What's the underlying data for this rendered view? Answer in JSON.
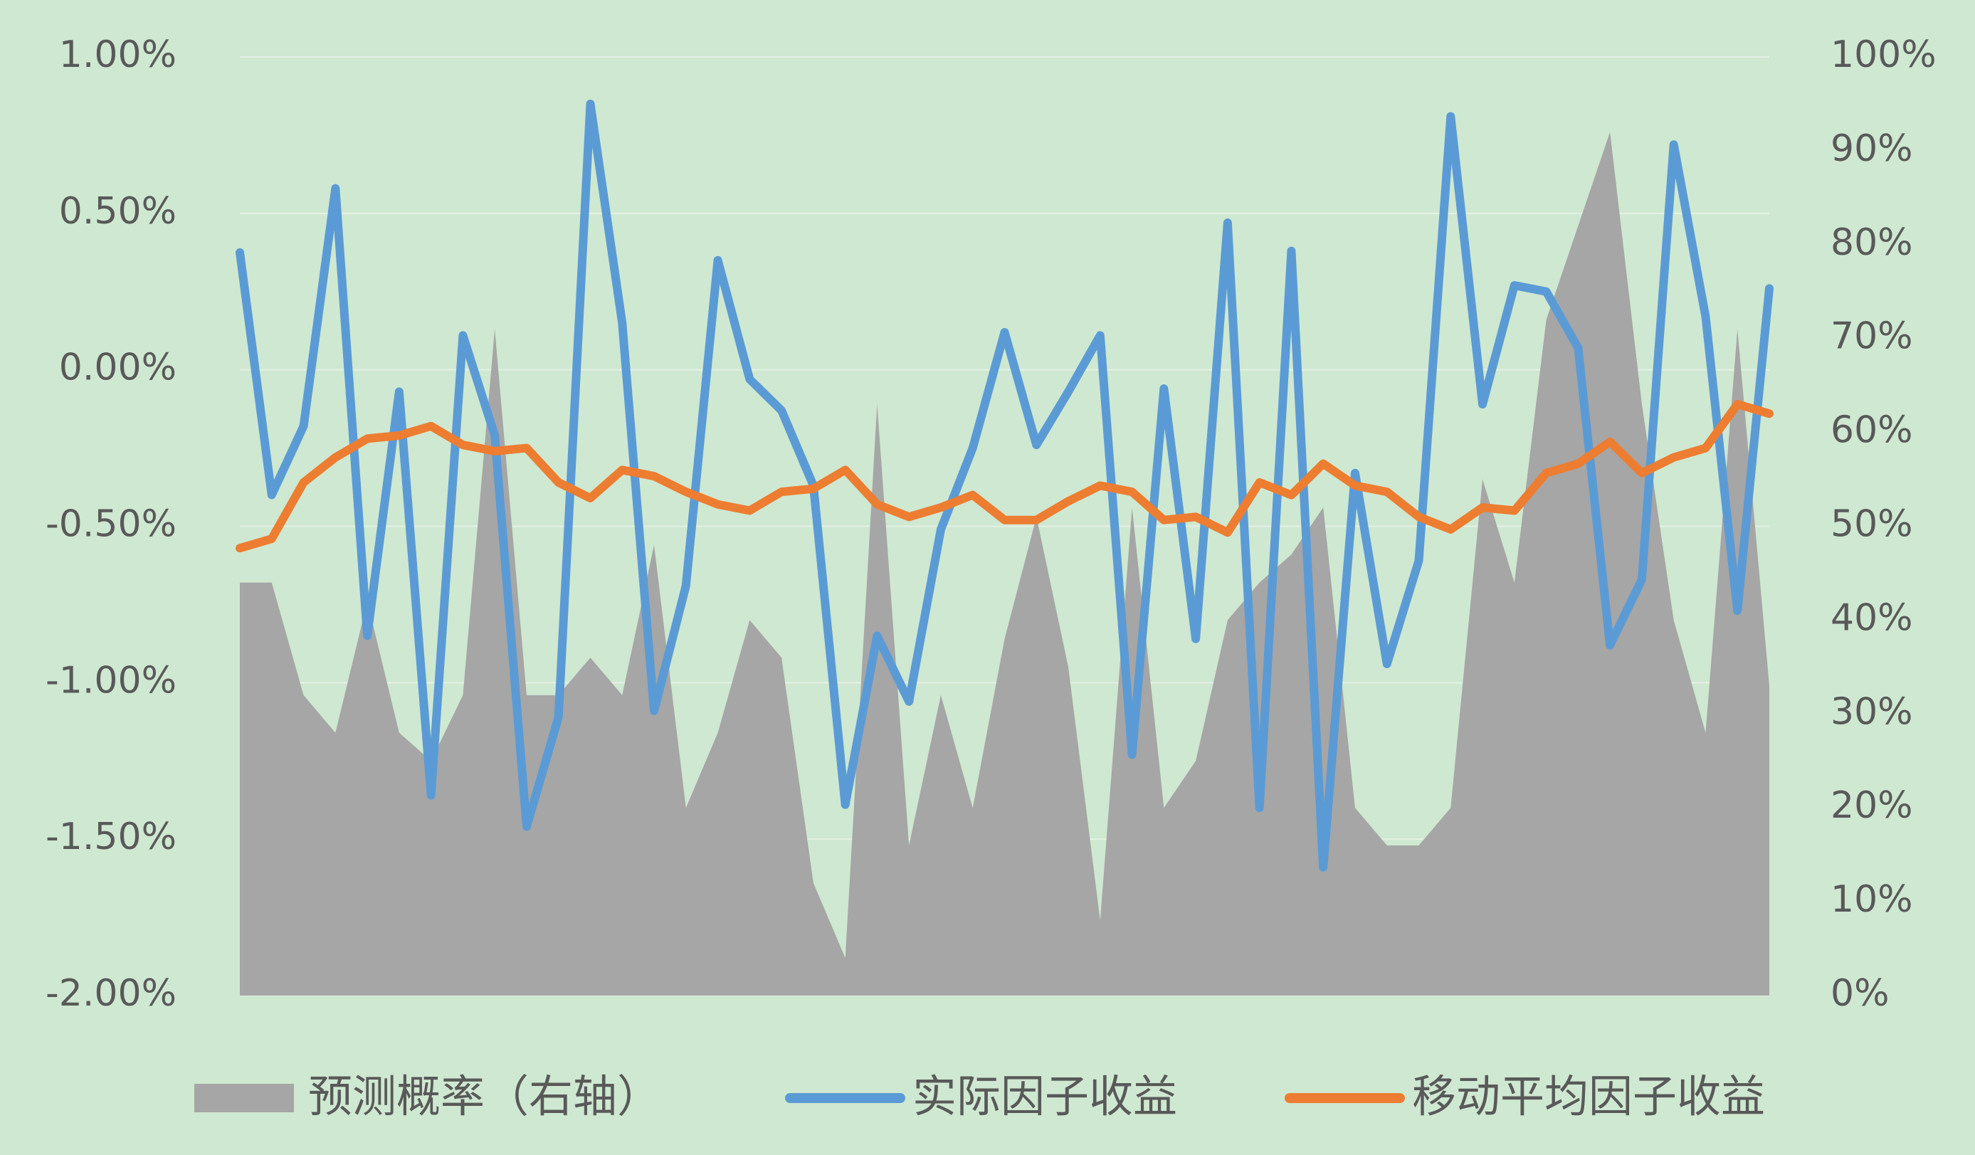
{
  "chart_data": {
    "type": "combo",
    "categories": [
      null,
      null,
      null,
      null,
      null,
      null,
      null,
      null,
      null,
      null,
      null,
      null,
      null,
      null,
      null,
      null,
      null,
      null,
      null,
      null,
      null,
      null,
      null,
      null,
      null,
      null,
      null,
      null,
      null,
      null,
      null,
      null,
      null,
      null,
      null,
      null,
      null,
      null,
      null,
      null,
      null,
      null,
      null,
      null,
      null,
      null,
      null,
      null,
      null
    ],
    "series": [
      {
        "name": "预测概率（右轴）",
        "type": "area",
        "axis": "y2",
        "color": "#a6a6a6",
        "values": [
          44,
          44,
          32,
          28,
          42,
          28,
          25,
          32,
          71,
          32,
          32,
          36,
          32,
          48,
          20,
          28,
          40,
          36,
          12,
          4,
          63,
          16,
          32,
          20,
          38,
          51,
          35,
          8,
          52,
          20,
          25,
          40,
          44,
          47,
          52,
          20,
          16,
          16,
          20,
          55,
          44,
          72,
          82,
          92,
          63,
          40,
          28,
          71,
          33
        ]
      },
      {
        "name": "实际因子收益",
        "type": "line",
        "color": "#5b9bd5",
        "values": [
          0.375,
          -0.4,
          -0.18,
          0.58,
          -0.85,
          -0.07,
          -1.36,
          0.11,
          -0.21,
          -1.46,
          -1.11,
          0.85,
          0.15,
          -1.09,
          -0.69,
          0.35,
          -0.03,
          -0.13,
          -0.37,
          -1.39,
          -0.85,
          -1.06,
          -0.51,
          -0.25,
          0.12,
          -0.24,
          -0.07,
          0.11,
          -1.23,
          -0.06,
          -0.86,
          0.47,
          -1.4,
          0.38,
          -1.59,
          -0.33,
          -0.94,
          -0.61,
          0.81,
          -0.11,
          0.27,
          0.25,
          0.07,
          -0.88,
          -0.67,
          0.72,
          0.17,
          -0.77,
          0.26
        ]
      },
      {
        "name": "移动平均因子收益",
        "type": "line",
        "color": "#ed7d31",
        "values": [
          -0.57,
          -0.54,
          -0.36,
          -0.28,
          -0.22,
          -0.21,
          -0.18,
          -0.24,
          -0.26,
          -0.25,
          -0.36,
          -0.41,
          -0.32,
          -0.34,
          -0.39,
          -0.43,
          -0.45,
          -0.39,
          -0.38,
          -0.32,
          -0.43,
          -0.47,
          -0.44,
          -0.4,
          -0.48,
          -0.48,
          -0.42,
          -0.37,
          -0.39,
          -0.48,
          -0.47,
          -0.52,
          -0.36,
          -0.4,
          -0.3,
          -0.37,
          -0.39,
          -0.47,
          -0.51,
          -0.44,
          -0.45,
          -0.33,
          -0.3,
          -0.23,
          -0.33,
          -0.28,
          -0.25,
          -0.11,
          -0.14
        ]
      }
    ],
    "ylim": [
      -2,
      1
    ],
    "yticks": [
      {
        "value": -2,
        "label": "-2.00%"
      },
      {
        "value": -1.5,
        "label": "-1.50%"
      },
      {
        "value": -1,
        "label": "-1.00%"
      },
      {
        "value": -0.5,
        "label": "-0.50%"
      },
      {
        "value": 0,
        "label": "0.00%"
      },
      {
        "value": 0.5,
        "label": "0.50%"
      },
      {
        "value": 1,
        "label": "1.00%"
      }
    ],
    "y2lim": [
      0,
      100
    ],
    "y2ticks": [
      {
        "value": 0,
        "label": "0%"
      },
      {
        "value": 10,
        "label": "10%"
      },
      {
        "value": 20,
        "label": "20%"
      },
      {
        "value": 30,
        "label": "30%"
      },
      {
        "value": 40,
        "label": "40%"
      },
      {
        "value": 50,
        "label": "50%"
      },
      {
        "value": 60,
        "label": "60%"
      },
      {
        "value": 70,
        "label": "70%"
      },
      {
        "value": 80,
        "label": "80%"
      },
      {
        "value": 90,
        "label": "90%"
      },
      {
        "value": 100,
        "label": "100%"
      }
    ],
    "grid": true,
    "legend": "bottom"
  }
}
